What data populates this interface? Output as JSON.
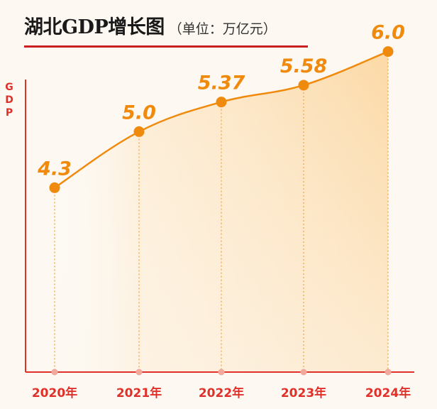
{
  "header": {
    "title": "湖北GDP增长图",
    "unit": "（单位：万亿元）"
  },
  "colors": {
    "accent": "#f08a0c",
    "axis": "#e0302a",
    "title_rule": "#c8201e",
    "tick_dot": "#f2a89a"
  },
  "chart_data": {
    "type": "line",
    "title": "湖北GDP增长图",
    "unit_label": "（单位：万亿元）",
    "ylabel": "GDP",
    "xlabel": "",
    "categories": [
      "2020年",
      "2021年",
      "2022年",
      "2023年",
      "2024年"
    ],
    "series": [
      {
        "values": [
          4.3,
          5.0,
          5.37,
          5.58,
          6.0
        ]
      }
    ],
    "data_labels": [
      "4.3",
      "5.0",
      "5.37",
      "5.58",
      "6.0"
    ],
    "ylim": [
      2.0,
      6.2
    ],
    "grid": false,
    "legend": "none"
  }
}
